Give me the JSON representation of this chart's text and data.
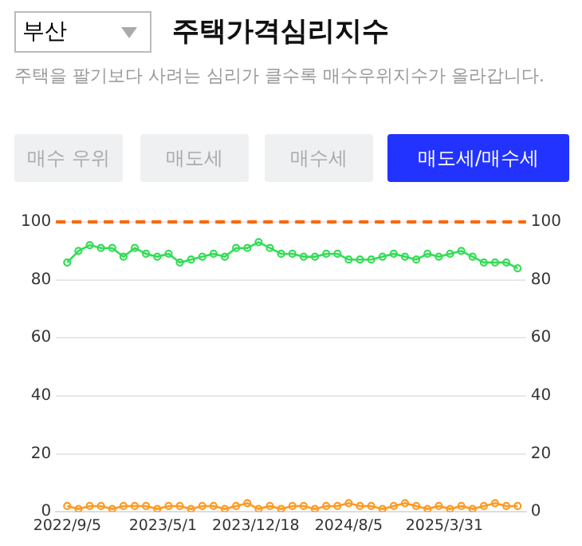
{
  "chart_data": {
    "type": "line",
    "title": "주택가격심리지수",
    "subtitle": "주택을 팔기보다 사려는 심리가 클수록 매수우위지수가 올라갑니다.",
    "annotations": [
      "부산",
      "매수 우위",
      "매도세",
      "매수세",
      "매도세/매수세"
    ],
    "x": [
      "2022-09-05",
      "2022-10-03",
      "2022-10-31",
      "2022-11-28",
      "2022-12-26",
      "2023-01-23",
      "2023-02-20",
      "2023-03-20",
      "2023-04-17",
      "2023-05-15",
      "2023-06-12",
      "2023-07-10",
      "2023-08-07",
      "2023-09-04",
      "2023-10-02",
      "2023-10-30",
      "2023-11-27",
      "2023-12-25",
      "2024-01-22",
      "2024-02-19",
      "2024-03-18",
      "2024-04-15",
      "2024-05-13",
      "2024-06-10",
      "2024-07-08",
      "2024-08-05",
      "2024-09-02",
      "2024-09-30",
      "2024-10-28",
      "2024-11-25",
      "2024-12-23",
      "2025-01-20",
      "2025-02-17",
      "2025-03-17",
      "2025-04-14",
      "2025-05-12",
      "2025-06-09",
      "2025-07-07",
      "2025-08-04",
      "2025-09-01",
      "2025-09-29"
    ],
    "series": [
      {
        "color": "#33dd55",
        "values": [
          86,
          90,
          92,
          91,
          91,
          88,
          91,
          89,
          88,
          89,
          86,
          87,
          88,
          89,
          88,
          91,
          91,
          93,
          91,
          89,
          89,
          88,
          88,
          89,
          89,
          87,
          87,
          87,
          88,
          89,
          88,
          87,
          89,
          88,
          89,
          90,
          88,
          86,
          86,
          86,
          84
        ]
      },
      {
        "color": "#ff9922",
        "values": [
          2,
          1,
          2,
          2,
          1,
          2,
          2,
          2,
          1,
          2,
          2,
          1,
          2,
          2,
          1,
          2,
          3,
          1,
          2,
          1,
          2,
          2,
          1,
          2,
          2,
          3,
          2,
          2,
          1,
          2,
          3,
          2,
          1,
          2,
          1,
          2,
          1,
          2,
          3,
          2,
          2
        ]
      }
    ],
    "marker": "circle",
    "xlim": [
      "2022-08-08",
      "2025-10-20"
    ],
    "xticks": [
      {
        "value": "2022-09-05",
        "label": "2022/9/5"
      },
      {
        "value": "2023-05-01",
        "label": "2023/5/1"
      },
      {
        "value": "2023-12-18",
        "label": "2023/12/18"
      },
      {
        "value": "2024-08-05",
        "label": "2024/8/5"
      },
      {
        "value": "2025-03-31",
        "label": "2025/3/31"
      }
    ],
    "ylim": [
      0,
      100
    ],
    "yticks": [
      0,
      20,
      40,
      60,
      80,
      100
    ],
    "y2lim": [
      0,
      100
    ],
    "y2ticks": [
      0,
      20,
      40,
      60,
      80,
      100
    ],
    "ref_lines": [
      {
        "axis": "y",
        "value": 100,
        "color": "#ff6600",
        "line_style": "dashed"
      }
    ],
    "grid": "y",
    "legend": false
  }
}
